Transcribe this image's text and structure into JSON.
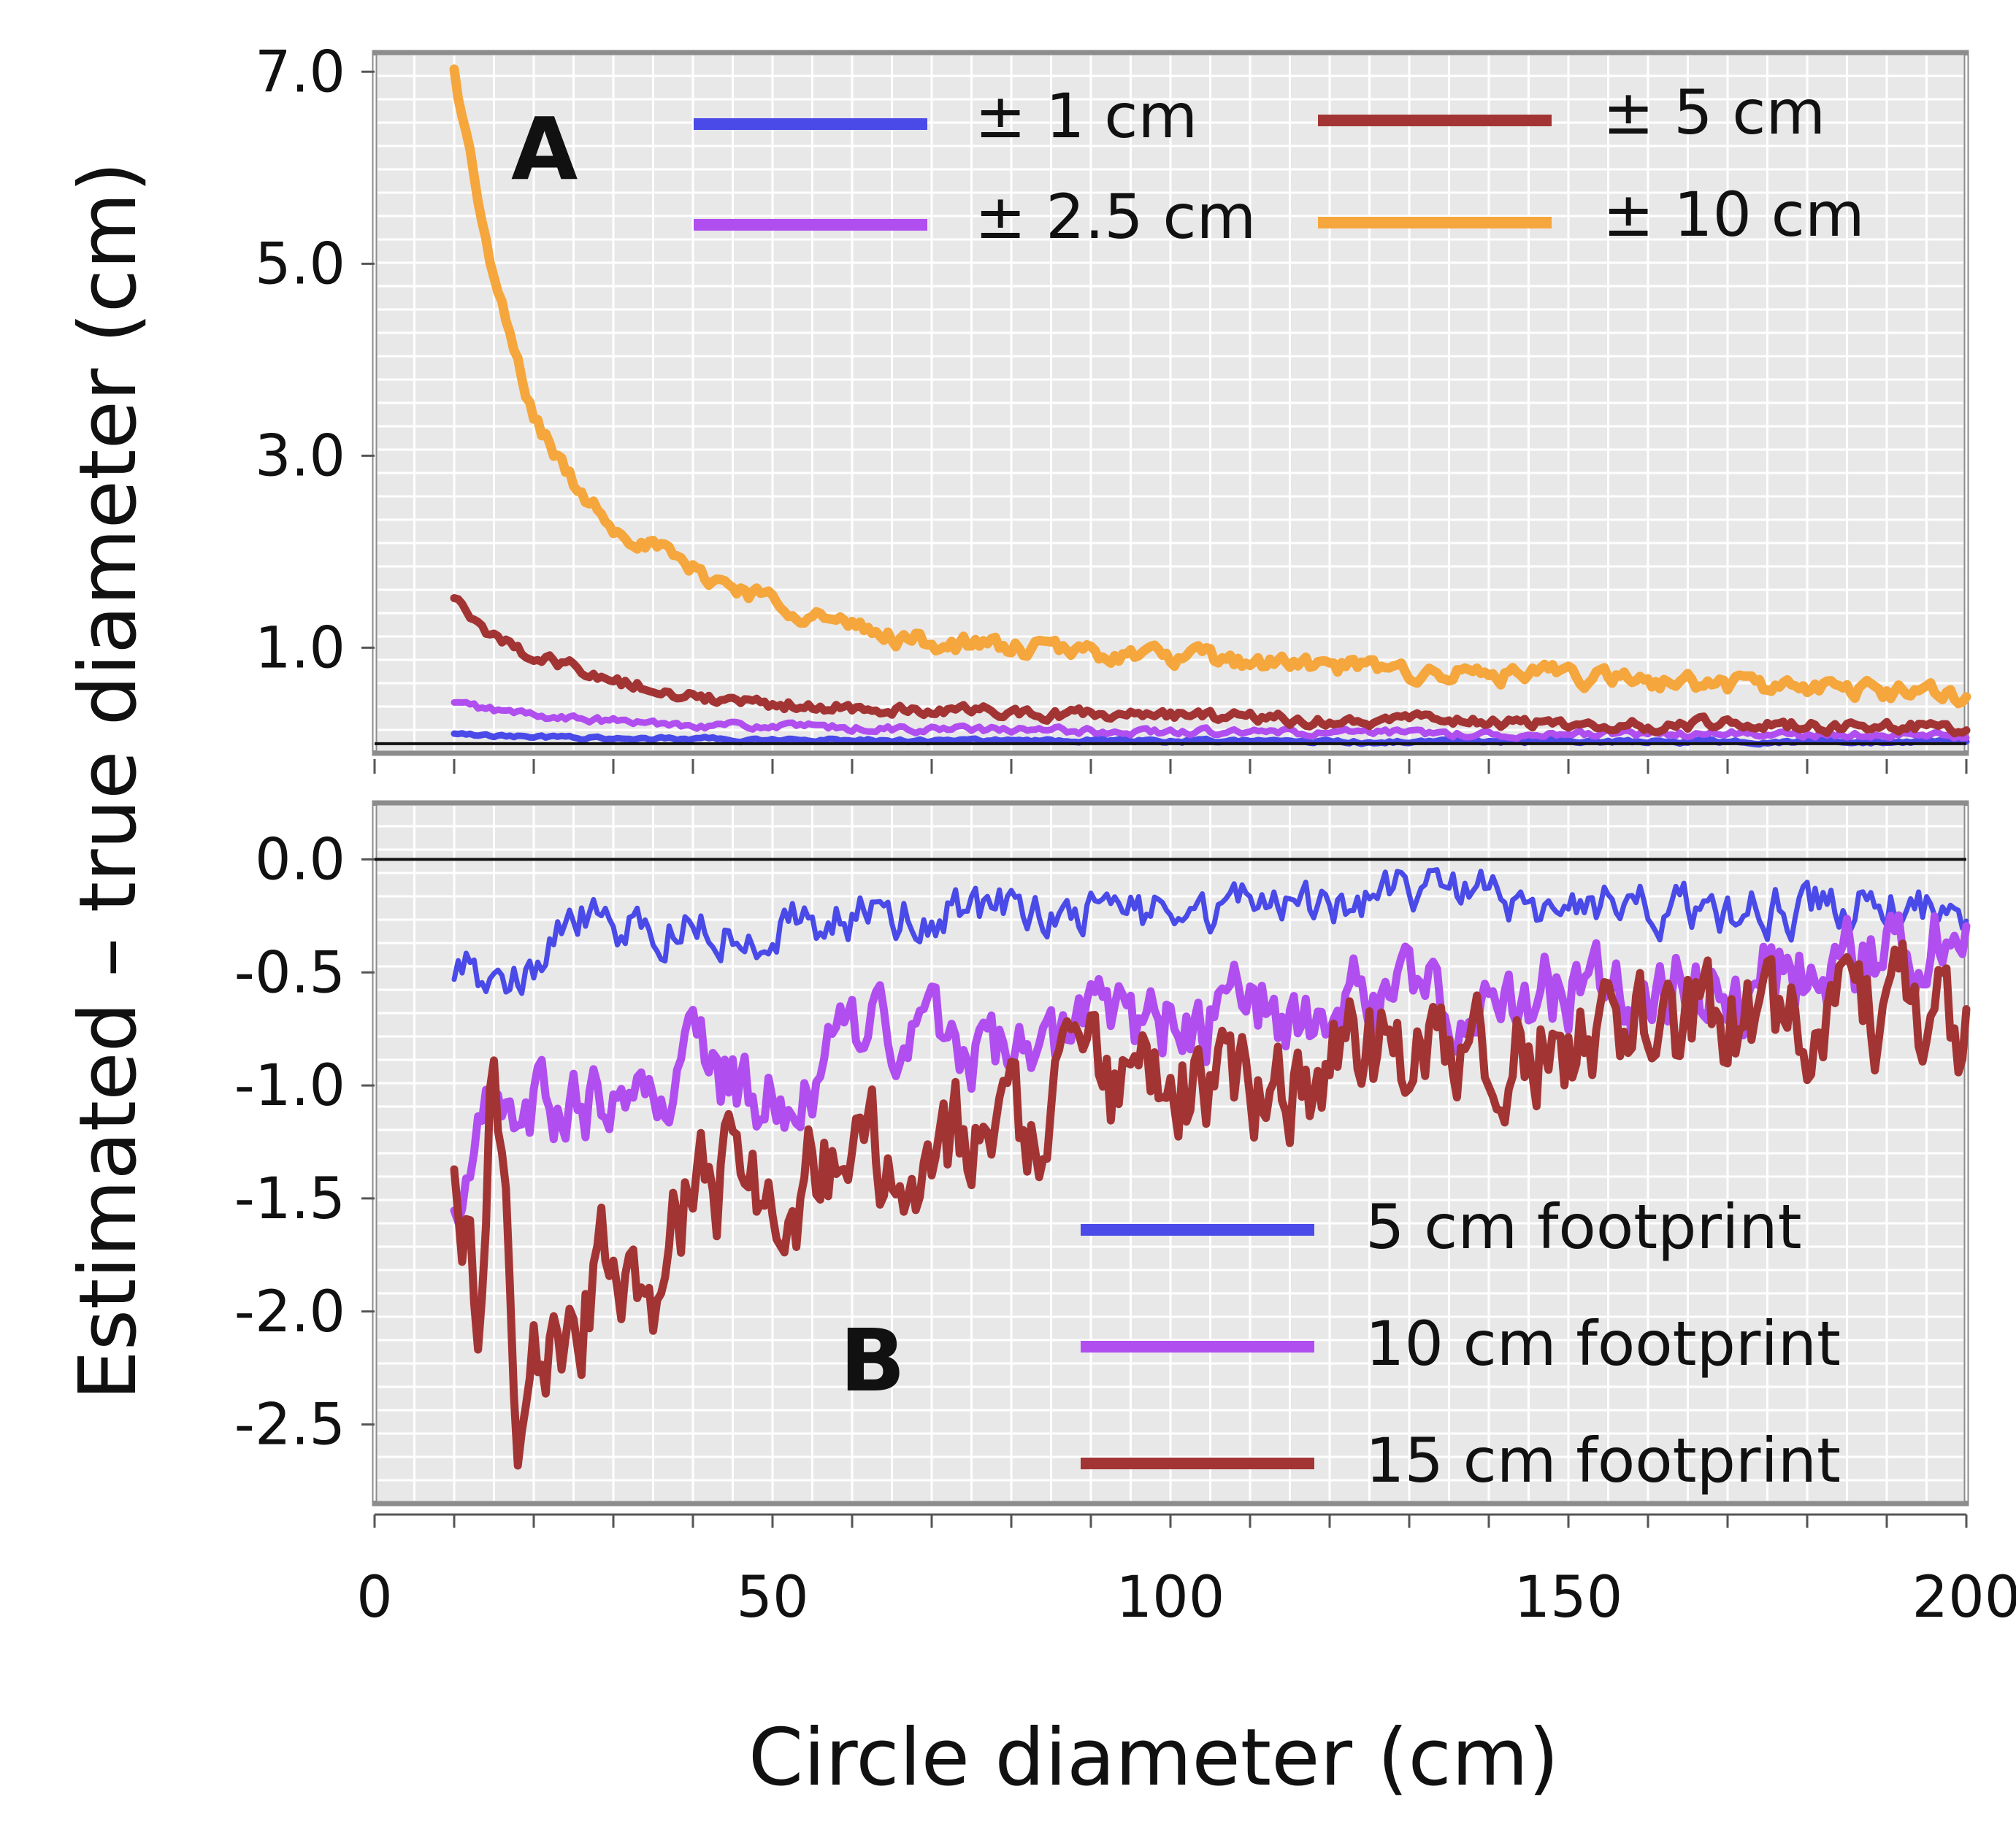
{
  "chart_data": [
    {
      "panel": "A",
      "type": "line",
      "panel_label": "A",
      "xlim": [
        0,
        200
      ],
      "ylim": [
        -0.1,
        7.2
      ],
      "x_ticks": [
        0,
        50,
        100,
        150,
        200
      ],
      "y_ticks": [
        1.0,
        3.0,
        5.0,
        7.0
      ],
      "y_tick_labels": [
        "1.0",
        "3.0",
        "5.0",
        "7.0"
      ],
      "baseline": 0,
      "grid": true,
      "legend_position": "top-center",
      "x": [
        10,
        15,
        20,
        25,
        30,
        40,
        50,
        60,
        70,
        80,
        90,
        100,
        110,
        120,
        130,
        140,
        150,
        160,
        170,
        180,
        190,
        200
      ],
      "series": [
        {
          "name": "± 1 cm",
          "color": "#4a4ae8",
          "noise": 0.015,
          "values": [
            0.1,
            0.08,
            0.07,
            0.06,
            0.05,
            0.05,
            0.04,
            0.04,
            0.03,
            0.03,
            0.03,
            0.03,
            0.03,
            0.02,
            0.02,
            0.02,
            0.02,
            0.02,
            0.02,
            0.02,
            0.02,
            0.02
          ]
        },
        {
          "name": "± 2.5 cm",
          "color": "#b04ef0",
          "noise": 0.03,
          "values": [
            0.42,
            0.35,
            0.3,
            0.26,
            0.23,
            0.2,
            0.18,
            0.16,
            0.15,
            0.14,
            0.13,
            0.12,
            0.12,
            0.11,
            0.11,
            0.1,
            0.1,
            0.1,
            0.1,
            0.09,
            0.09,
            0.09
          ]
        },
        {
          "name": "± 5 cm",
          "color": "#a33434",
          "noise": 0.05,
          "values": [
            1.5,
            1.1,
            0.9,
            0.8,
            0.65,
            0.5,
            0.42,
            0.38,
            0.35,
            0.32,
            0.3,
            0.28,
            0.26,
            0.25,
            0.24,
            0.22,
            0.21,
            0.2,
            0.2,
            0.18,
            0.17,
            0.17
          ]
        },
        {
          "name": "± 10 cm",
          "color": "#f5a63c",
          "noise": 0.08,
          "values": [
            7.0,
            4.8,
            3.4,
            2.7,
            2.3,
            1.8,
            1.5,
            1.2,
            1.05,
            1.0,
            0.95,
            0.9,
            0.85,
            0.8,
            0.75,
            0.72,
            0.7,
            0.65,
            0.62,
            0.58,
            0.55,
            0.5
          ]
        }
      ]
    },
    {
      "panel": "B",
      "type": "line",
      "panel_label": "B",
      "xlim": [
        0,
        200
      ],
      "ylim": [
        -2.85,
        0.25
      ],
      "x_ticks": [
        0,
        50,
        100,
        150,
        200
      ],
      "x_tick_labels": [
        "0",
        "50",
        "100",
        "150",
        "200"
      ],
      "y_ticks": [
        0.0,
        -0.5,
        -1.0,
        -1.5,
        -2.0,
        -2.5
      ],
      "y_tick_labels": [
        "0.0",
        "-0.5",
        "-1.0",
        "-1.5",
        "-2.0",
        "-2.5"
      ],
      "baseline": 0,
      "grid": true,
      "legend_position": "bottom-right",
      "x": [
        10,
        13,
        15,
        18,
        20,
        25,
        30,
        35,
        40,
        50,
        60,
        70,
        80,
        90,
        100,
        110,
        120,
        130,
        140,
        150,
        160,
        170,
        180,
        190,
        200
      ],
      "series": [
        {
          "name": "5 cm footprint",
          "color": "#4a4ae8",
          "noise": 0.09,
          "values": [
            -0.5,
            -0.5,
            -0.45,
            -0.55,
            -0.45,
            -0.25,
            -0.3,
            -0.3,
            -0.3,
            -0.3,
            -0.25,
            -0.25,
            -0.2,
            -0.2,
            -0.25,
            -0.2,
            -0.2,
            -0.15,
            -0.15,
            -0.2,
            -0.2,
            -0.25,
            -0.2,
            -0.2,
            -0.25
          ]
        },
        {
          "name": "10 cm footprint",
          "color": "#b04ef0",
          "noise": 0.16,
          "values": [
            -1.5,
            -1.1,
            -0.95,
            -1.0,
            -1.1,
            -1.05,
            -1.15,
            -1.2,
            -0.9,
            -1.05,
            -0.75,
            -0.8,
            -0.85,
            -0.75,
            -0.7,
            -0.7,
            -0.65,
            -0.65,
            -0.6,
            -0.6,
            -0.6,
            -0.55,
            -0.5,
            -0.45,
            -0.3
          ]
        },
        {
          "name": "15 cm footprint",
          "color": "#a33434",
          "noise": 0.22,
          "values": [
            -1.3,
            -2.0,
            -0.8,
            -2.5,
            -2.3,
            -2.1,
            -1.7,
            -1.9,
            -1.4,
            -1.5,
            -1.3,
            -1.3,
            -1.2,
            -1.05,
            -1.0,
            -1.0,
            -0.9,
            -0.9,
            -0.85,
            -0.8,
            -0.75,
            -0.7,
            -0.7,
            -0.7,
            -0.75
          ]
        }
      ]
    }
  ],
  "y_axis_title": "Estimated – true diameter (cm)",
  "x_axis_title": "Circle diameter (cm)"
}
